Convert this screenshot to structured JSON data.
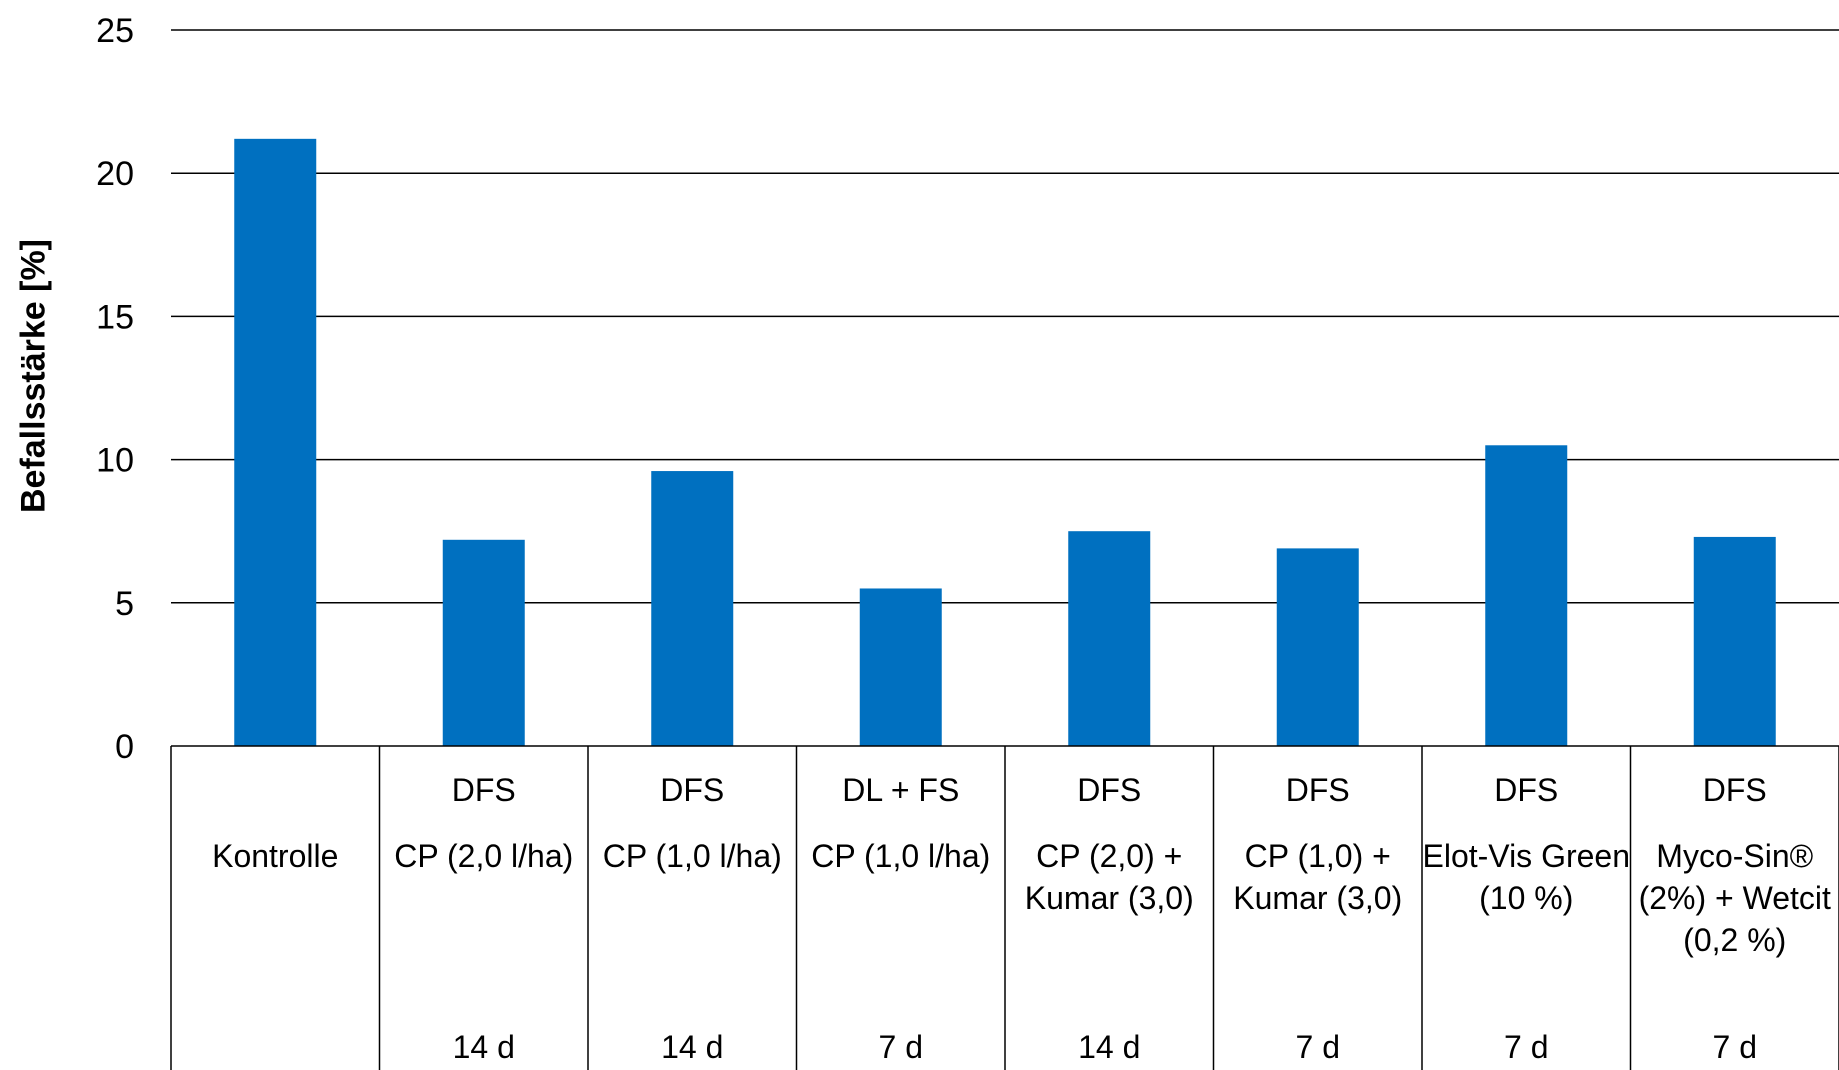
{
  "chart_data": {
    "type": "bar",
    "ylabel": "Befallsstärke [%]",
    "ylim": [
      0,
      25
    ],
    "yticks": [
      "0",
      "5",
      "10",
      "15",
      "20",
      "25"
    ],
    "grid": true,
    "color": "#0070C0",
    "categories": [
      {
        "method": "",
        "treatment": "Kontrolle",
        "interval": ""
      },
      {
        "method": "DFS",
        "treatment": "CP (2,0 l/ha)",
        "interval": "14 d"
      },
      {
        "method": "DFS",
        "treatment": "CP (1,0 l/ha)",
        "interval": "14 d"
      },
      {
        "method": "DL + FS",
        "treatment": "CP (1,0 l/ha)",
        "interval": "7 d"
      },
      {
        "method": "DFS",
        "treatment": "CP (2,0) + Kumar (3,0)",
        "interval": "14 d"
      },
      {
        "method": "DFS",
        "treatment": "CP (1,0) + Kumar (3,0)",
        "interval": "7 d"
      },
      {
        "method": "DFS",
        "treatment": "Elot-Vis Green (10 %)",
        "interval": "7 d"
      },
      {
        "method": "DFS",
        "treatment": "Myco-Sin® (2%) + Wetcit (0,2 %)",
        "interval": "7 d"
      }
    ],
    "values": [
      21.2,
      7.2,
      9.6,
      5.5,
      7.5,
      6.9,
      10.5,
      7.3
    ]
  }
}
